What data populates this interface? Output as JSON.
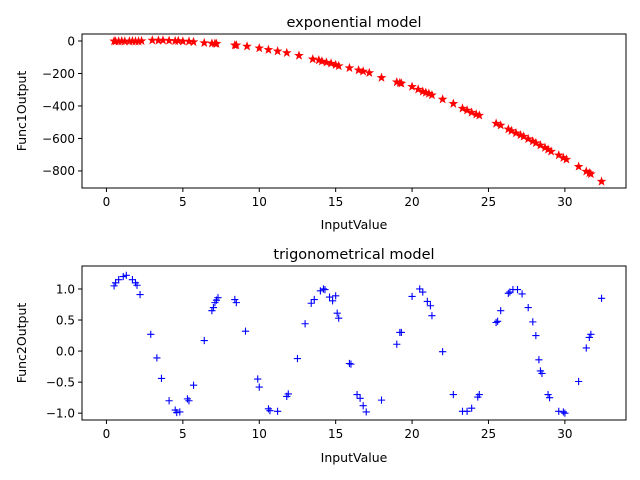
{
  "chart_data": [
    {
      "type": "scatter",
      "title": "exponential model",
      "xlabel": "InputValue",
      "ylabel": "Func1Output",
      "xlim": [
        -1.6,
        34.0
      ],
      "ylim": [
        -905,
        43
      ],
      "xticks": [
        0,
        5,
        10,
        15,
        20,
        25,
        30
      ],
      "yticks": [
        0,
        -200,
        -400,
        -600,
        -800
      ],
      "marker": "star",
      "color": "#ff0000",
      "x": [
        0.5,
        0.6,
        0.8,
        1.0,
        1.2,
        1.5,
        1.7,
        1.9,
        2.1,
        2.3,
        3.0,
        3.4,
        3.7,
        4.1,
        4.5,
        4.7,
        5.0,
        5.4,
        5.7,
        6.4,
        6.9,
        7.1,
        7.2,
        8.4,
        8.5,
        9.2,
        10.0,
        10.6,
        11.2,
        11.8,
        12.6,
        13.5,
        13.9,
        14.1,
        14.4,
        14.7,
        15.0,
        15.2,
        15.9,
        16.5,
        16.8,
        17.2,
        18.0,
        19.0,
        19.2,
        19.3,
        20.0,
        20.4,
        20.7,
        20.9,
        21.1,
        21.3,
        22.0,
        22.7,
        23.3,
        23.6,
        23.9,
        24.2,
        24.4,
        25.5,
        25.8,
        26.3,
        26.5,
        26.8,
        27.1,
        27.3,
        27.6,
        27.9,
        28.1,
        28.4,
        28.7,
        28.9,
        29.1,
        29.6,
        29.9,
        30.1,
        30.9,
        31.4,
        31.6,
        31.7,
        32.4
      ],
      "values": [
        -1,
        -2,
        -2,
        -1,
        -2,
        -2,
        -1,
        -2,
        -2,
        0,
        4,
        3,
        4,
        2,
        0,
        1,
        -2,
        -3,
        -6,
        -12,
        -15,
        -15,
        -17,
        -26,
        -26,
        -33,
        -44,
        -54,
        -63,
        -73,
        -90,
        -112,
        -118,
        -125,
        -132,
        -138,
        -147,
        -154,
        -166,
        -180,
        -187,
        -196,
        -226,
        -253,
        -258,
        -261,
        -281,
        -298,
        -311,
        -318,
        -324,
        -333,
        -359,
        -386,
        -415,
        -427,
        -440,
        -452,
        -458,
        -508,
        -519,
        -543,
        -553,
        -567,
        -579,
        -588,
        -603,
        -617,
        -628,
        -642,
        -657,
        -668,
        -680,
        -703,
        -719,
        -729,
        -773,
        -803,
        -813,
        -819,
        -865
      ]
    },
    {
      "type": "scatter",
      "title": "trigonometrical model",
      "xlabel": "InputValue",
      "ylabel": "Func2Output",
      "xlim": [
        -1.6,
        34.0
      ],
      "ylim": [
        -1.11,
        1.37
      ],
      "xticks": [
        0,
        5,
        10,
        15,
        20,
        25,
        30
      ],
      "yticks": [
        1.0,
        0.5,
        0.0,
        -0.5,
        -1.0
      ],
      "marker": "plus",
      "color": "#0000ff",
      "x": [
        0.5,
        0.6,
        0.8,
        1.1,
        1.3,
        1.7,
        1.9,
        2.0,
        2.2,
        2.9,
        3.3,
        3.6,
        4.1,
        4.5,
        4.6,
        4.8,
        5.3,
        5.4,
        5.7,
        6.4,
        6.9,
        7.0,
        7.1,
        7.2,
        7.3,
        8.4,
        8.5,
        9.1,
        9.9,
        10.0,
        10.6,
        10.7,
        11.2,
        11.8,
        11.9,
        12.5,
        13.0,
        13.4,
        13.6,
        14.0,
        14.2,
        14.3,
        14.6,
        14.8,
        15.0,
        15.1,
        15.2,
        15.9,
        16.0,
        16.4,
        16.6,
        16.8,
        17.0,
        18.0,
        19.0,
        19.2,
        19.3,
        20.0,
        20.5,
        20.7,
        21.0,
        21.2,
        21.3,
        22.0,
        22.7,
        23.3,
        23.6,
        23.9,
        24.3,
        24.4,
        25.5,
        25.6,
        25.8,
        26.3,
        26.4,
        26.6,
        26.9,
        27.2,
        27.6,
        27.9,
        28.1,
        28.3,
        28.4,
        28.5,
        28.9,
        29.0,
        29.6,
        29.9,
        30.0,
        30.9,
        31.4,
        31.6,
        31.7,
        32.4
      ],
      "values": [
        1.05,
        1.1,
        1.15,
        1.2,
        1.22,
        1.15,
        1.1,
        1.06,
        0.91,
        0.27,
        -0.11,
        -0.44,
        -0.8,
        -0.95,
        -0.99,
        -0.98,
        -0.77,
        -0.8,
        -0.55,
        0.17,
        0.65,
        0.7,
        0.78,
        0.82,
        0.86,
        0.83,
        0.78,
        0.32,
        -0.45,
        -0.58,
        -0.93,
        -0.96,
        -0.97,
        -0.73,
        -0.69,
        -0.12,
        0.44,
        0.77,
        0.83,
        0.97,
        1.0,
        0.99,
        0.87,
        0.81,
        0.89,
        0.61,
        0.53,
        -0.2,
        -0.21,
        -0.7,
        -0.76,
        -0.88,
        -0.98,
        -0.79,
        0.11,
        0.3,
        0.3,
        0.88,
        1.0,
        0.95,
        0.8,
        0.73,
        0.57,
        -0.01,
        -0.7,
        -0.97,
        -0.97,
        -0.92,
        -0.74,
        -0.7,
        0.46,
        0.48,
        0.65,
        0.93,
        0.95,
        0.99,
        0.99,
        0.92,
        0.7,
        0.47,
        0.25,
        -0.14,
        -0.32,
        -0.36,
        -0.7,
        -0.75,
        -0.97,
        -0.98,
        -1.0,
        -0.49,
        0.05,
        0.22,
        0.27,
        0.85
      ]
    }
  ]
}
